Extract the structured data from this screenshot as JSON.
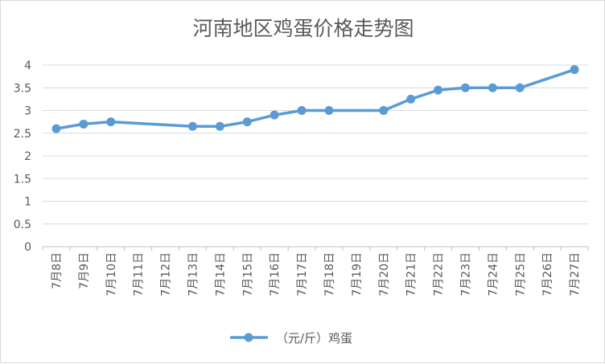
{
  "chart_data": {
    "type": "line",
    "title": "河南地区鸡蛋价格走势图",
    "categories": [
      "7月8日",
      "7月9日",
      "7月10日",
      "7月11日",
      "7月12日",
      "7月13日",
      "7月14日",
      "7月15日",
      "7月16日",
      "7月17日",
      "7月18日",
      "7月19日",
      "7月20日",
      "7月21日",
      "7月22日",
      "7月23日",
      "7月24日",
      "7月25日",
      "7月26日",
      "7月27日"
    ],
    "series": [
      {
        "name": "（元/斤）鸡蛋",
        "color": "#5b9bd5",
        "values": [
          2.6,
          2.7,
          2.75,
          null,
          null,
          2.65,
          2.65,
          2.75,
          2.9,
          3.0,
          3.0,
          null,
          3.0,
          3.25,
          3.45,
          3.5,
          3.5,
          3.5,
          null,
          3.9
        ]
      }
    ],
    "yticks": [
      "0",
      "0.5",
      "1",
      "1.5",
      "2",
      "2.5",
      "3",
      "3.5",
      "4"
    ],
    "ylim": [
      0,
      4
    ],
    "grid": true,
    "legend_position": "bottom"
  }
}
